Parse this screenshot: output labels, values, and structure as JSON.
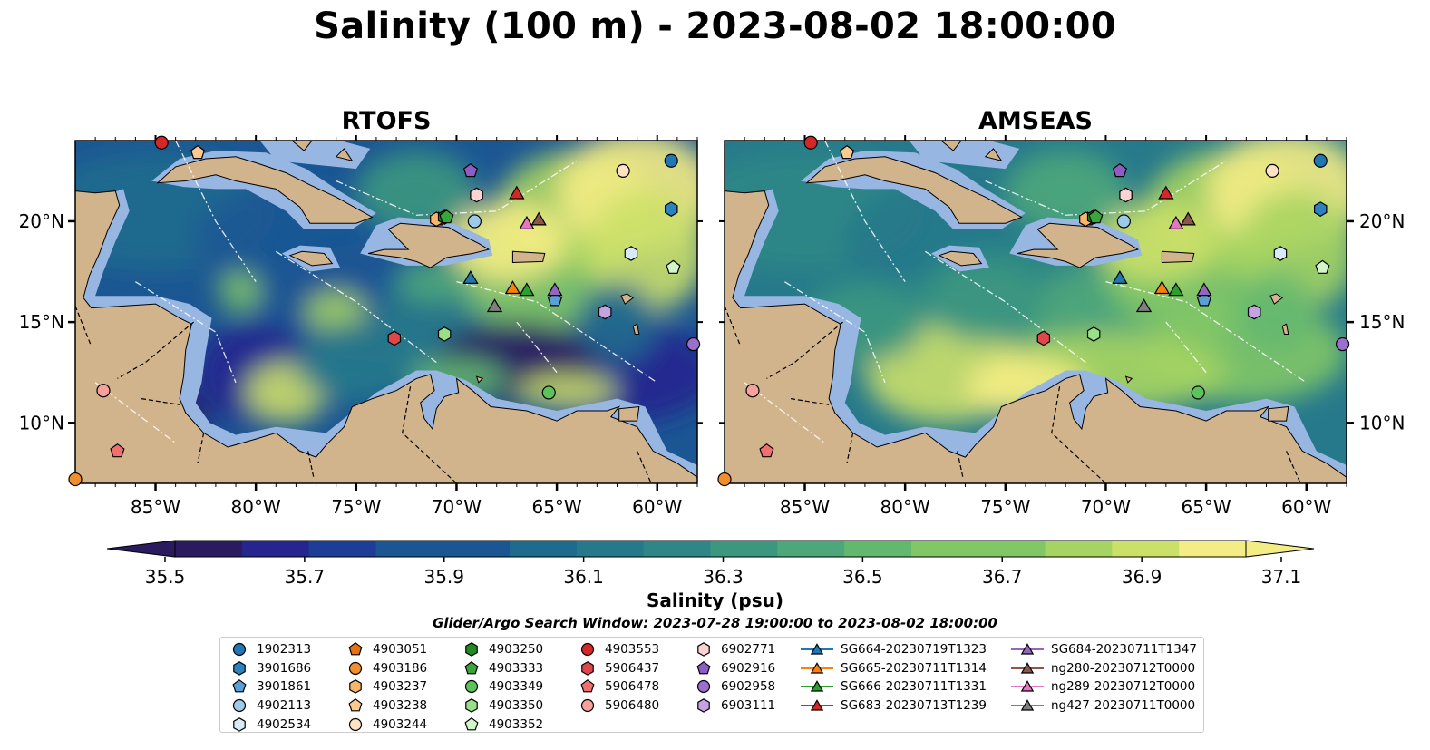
{
  "title": "Salinity (100 m) - 2023-08-02 18:00:00",
  "panels": [
    {
      "title": "RTOFS"
    },
    {
      "title": "AMSEAS"
    }
  ],
  "map_axes": {
    "lon_ticks": [
      "85°W",
      "80°W",
      "75°W",
      "70°W",
      "65°W",
      "60°W"
    ],
    "lat_ticks": [
      "20°N",
      "15°N",
      "10°N"
    ],
    "lon_range": [
      -89,
      -58
    ],
    "lat_range": [
      7,
      24
    ]
  },
  "colorbar": {
    "label": "Salinity (psu)",
    "ticks": [
      "35.5",
      "35.7",
      "35.9",
      "36.1",
      "36.3",
      "36.5",
      "36.7",
      "36.9",
      "37.1"
    ],
    "range": [
      35.5,
      37.1
    ],
    "extend": "both",
    "colors": [
      "#2a1a5e",
      "#26248f",
      "#1e3d96",
      "#1b5693",
      "#1f6b8e",
      "#26798b",
      "#2e8786",
      "#3c977f",
      "#4ea77a",
      "#63b870",
      "#82c766",
      "#a6d462",
      "#cbe069",
      "#f4ec84"
    ]
  },
  "colors": {
    "land": "#d2b48c",
    "shelf": "#98b6e2",
    "legend_border": "#cccccc"
  },
  "search_window": "Glider/Argo Search Window: 2023-07-28 19:00:00 to 2023-08-02 18:00:00",
  "legend": {
    "columns": [
      [
        {
          "label": "1902313",
          "marker": "circle",
          "color": "#1f77b4"
        },
        {
          "label": "3901686",
          "marker": "hexagon",
          "color": "#2c82c0"
        },
        {
          "label": "3901861",
          "marker": "pentagon",
          "color": "#5a9fd6"
        },
        {
          "label": "4902113",
          "marker": "circle",
          "color": "#9ecae9"
        },
        {
          "label": "4902534",
          "marker": "hexagon",
          "color": "#d6eaf8"
        }
      ],
      [
        {
          "label": "4903051",
          "marker": "pentagon",
          "color": "#e6730e"
        },
        {
          "label": "4903186",
          "marker": "circle",
          "color": "#f28e2c"
        },
        {
          "label": "4903237",
          "marker": "hexagon",
          "color": "#f9b66b"
        },
        {
          "label": "4903238",
          "marker": "pentagon",
          "color": "#fcc98f"
        },
        {
          "label": "4903244",
          "marker": "circle",
          "color": "#fde2c4"
        }
      ],
      [
        {
          "label": "4903250",
          "marker": "hexagon",
          "color": "#1e8c1e"
        },
        {
          "label": "4903333",
          "marker": "pentagon",
          "color": "#3aa53a"
        },
        {
          "label": "4903349",
          "marker": "circle",
          "color": "#5cc25c"
        },
        {
          "label": "4903350",
          "marker": "hexagon",
          "color": "#98df8a"
        },
        {
          "label": "4903352",
          "marker": "pentagon",
          "color": "#d4f5cc"
        }
      ],
      [
        {
          "label": "4903553",
          "marker": "circle",
          "color": "#d62728"
        },
        {
          "label": "5906437",
          "marker": "hexagon",
          "color": "#e0474a"
        },
        {
          "label": "5906478",
          "marker": "pentagon",
          "color": "#f07070"
        },
        {
          "label": "5906480",
          "marker": "circle",
          "color": "#f7a09c"
        }
      ],
      [
        {
          "label": "6902771",
          "marker": "hexagon",
          "color": "#fbd3d3"
        },
        {
          "label": "6902916",
          "marker": "pentagon",
          "color": "#8e5cc4"
        },
        {
          "label": "6902958",
          "marker": "circle",
          "color": "#9b6fcc"
        },
        {
          "label": "6903111",
          "marker": "hexagon",
          "color": "#c5a3e3"
        }
      ],
      [
        {
          "label": "SG664-20230719T1323",
          "marker": "triangle-line",
          "color": "#1f77b4"
        },
        {
          "label": "SG665-20230711T1314",
          "marker": "triangle-line",
          "color": "#ff7f0e"
        },
        {
          "label": "SG666-20230711T1331",
          "marker": "triangle-line",
          "color": "#2ca02c"
        },
        {
          "label": "SG683-20230713T1239",
          "marker": "triangle-line",
          "color": "#d62728"
        }
      ],
      [
        {
          "label": "SG684-20230711T1347",
          "marker": "triangle-line",
          "color": "#9467bd"
        },
        {
          "label": "ng280-20230712T0000",
          "marker": "triangle-line",
          "color": "#8c564b"
        },
        {
          "label": "ng289-20230712T0000",
          "marker": "triangle-line",
          "color": "#e377c2"
        },
        {
          "label": "ng427-20230711T0000",
          "marker": "triangle-line",
          "color": "#7f7f7f"
        }
      ]
    ]
  },
  "observations": [
    {
      "id": "1902313",
      "lon": -59.3,
      "lat": 23.0
    },
    {
      "id": "3901686",
      "lon": -59.3,
      "lat": 20.6
    },
    {
      "id": "3901861",
      "lon": -65.1,
      "lat": 16.1
    },
    {
      "id": "4902113",
      "lon": -69.1,
      "lat": 20.0
    },
    {
      "id": "4902534",
      "lon": -61.3,
      "lat": 18.4
    },
    {
      "id": "4903051",
      "lon": -70.9,
      "lat": 20.1
    },
    {
      "id": "4903186",
      "lon": -89.0,
      "lat": 7.2
    },
    {
      "id": "4903237",
      "lon": -71.0,
      "lat": 20.1
    },
    {
      "id": "4903238",
      "lon": -82.9,
      "lat": 23.4
    },
    {
      "id": "4903244",
      "lon": -61.7,
      "lat": 22.5
    },
    {
      "id": "4903250",
      "lon": -70.6,
      "lat": 20.2
    },
    {
      "id": "4903333",
      "lon": -70.5,
      "lat": 20.2
    },
    {
      "id": "4903349",
      "lon": -65.4,
      "lat": 11.5
    },
    {
      "id": "4903350",
      "lon": -70.6,
      "lat": 14.4
    },
    {
      "id": "4903352",
      "lon": -59.2,
      "lat": 17.7
    },
    {
      "id": "4903553",
      "lon": -84.7,
      "lat": 23.9
    },
    {
      "id": "5906437",
      "lon": -73.1,
      "lat": 14.2
    },
    {
      "id": "5906478",
      "lon": -86.9,
      "lat": 8.6
    },
    {
      "id": "5906480",
      "lon": -87.6,
      "lat": 11.6
    },
    {
      "id": "6902771",
      "lon": -69.0,
      "lat": 21.3
    },
    {
      "id": "6902916",
      "lon": -69.3,
      "lat": 22.5
    },
    {
      "id": "6902958",
      "lon": -58.2,
      "lat": 13.9
    },
    {
      "id": "6903111",
      "lon": -62.6,
      "lat": 15.5
    }
  ],
  "gliders": [
    {
      "id": "SG664-20230719T1323",
      "lon": -69.3,
      "lat": 17.2
    },
    {
      "id": "SG665-20230711T1314",
      "lon": -67.2,
      "lat": 16.7
    },
    {
      "id": "SG666-20230711T1331",
      "lon": -66.5,
      "lat": 16.6
    },
    {
      "id": "SG683-20230713T1239",
      "lon": -67.0,
      "lat": 21.4
    },
    {
      "id": "SG684-20230711T1347",
      "lon": -65.1,
      "lat": 16.6
    },
    {
      "id": "ng280-20230712T0000",
      "lon": -65.9,
      "lat": 20.1
    },
    {
      "id": "ng289-20230712T0000",
      "lon": -66.5,
      "lat": 19.9
    },
    {
      "id": "ng427-20230711T0000",
      "lon": -68.1,
      "lat": 15.8
    }
  ]
}
